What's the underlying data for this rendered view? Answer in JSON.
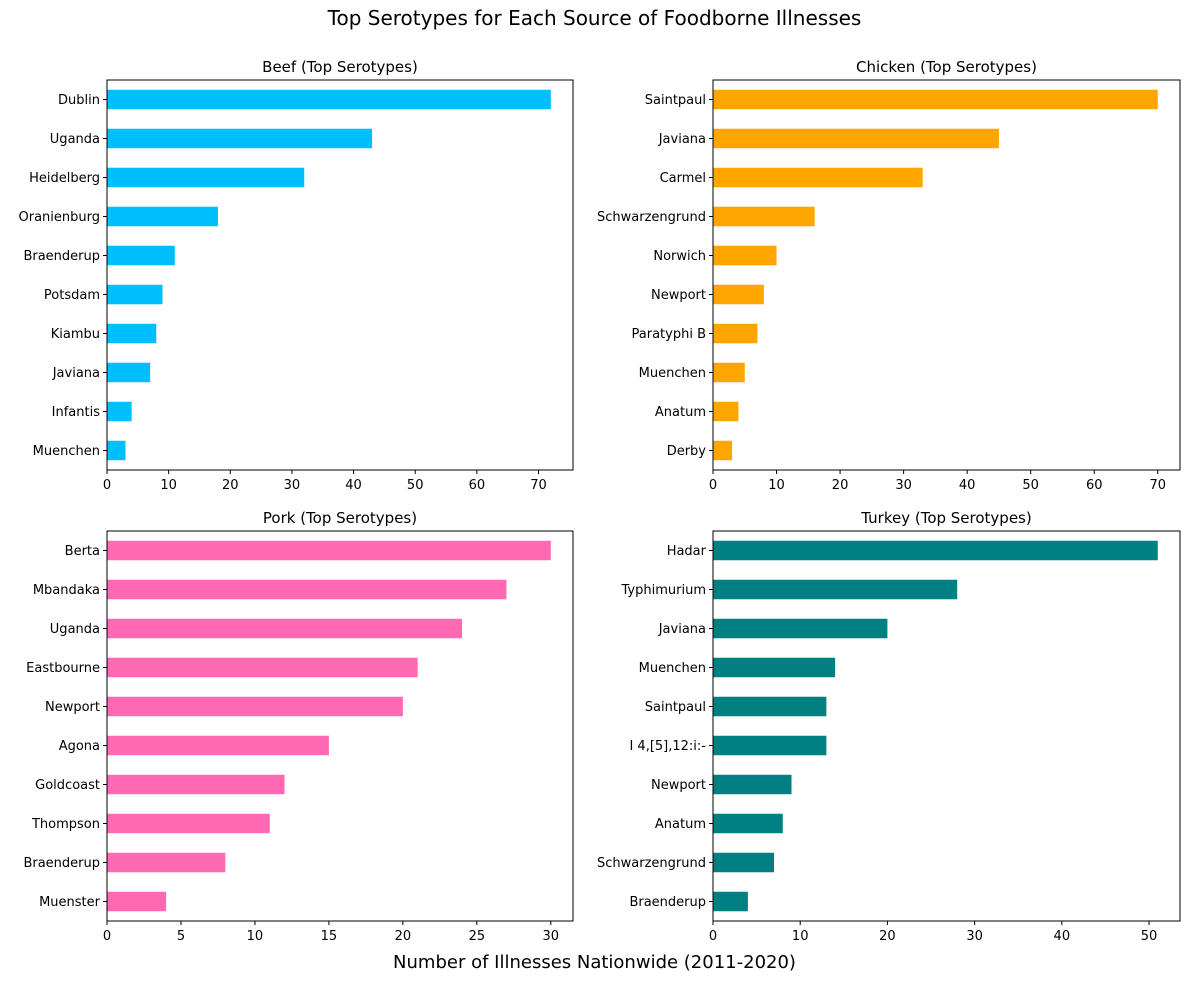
{
  "figure": {
    "title": "Top Serotypes for Each Source of Foodborne Illnesses",
    "xlabel": "Number of Illnesses Nationwide (2011-2020)"
  },
  "chart_data": [
    {
      "type": "bar",
      "orientation": "horizontal",
      "title": "Beef (Top Serotypes)",
      "color": "#00BFFF",
      "categories": [
        "Dublin",
        "Uganda",
        "Heidelberg",
        "Oranienburg",
        "Braenderup",
        "Potsdam",
        "Kiambu",
        "Javiana",
        "Infantis",
        "Muenchen"
      ],
      "values": [
        72,
        43,
        32,
        18,
        11,
        9,
        8,
        7,
        4,
        3
      ],
      "xlim": [
        0,
        75.6
      ],
      "xticks": [
        0,
        10,
        20,
        30,
        40,
        50,
        60,
        70
      ],
      "grid": false
    },
    {
      "type": "bar",
      "orientation": "horizontal",
      "title": "Chicken (Top Serotypes)",
      "color": "#FFA500",
      "categories": [
        "Saintpaul",
        "Javiana",
        "Carmel",
        "Schwarzengrund",
        "Norwich",
        "Newport",
        "Paratyphi B",
        "Muenchen",
        "Anatum",
        "Derby"
      ],
      "values": [
        70,
        45,
        33,
        16,
        10,
        8,
        7,
        5,
        4,
        3
      ],
      "xlim": [
        0,
        73.5
      ],
      "xticks": [
        0,
        10,
        20,
        30,
        40,
        50,
        60,
        70
      ],
      "grid": false
    },
    {
      "type": "bar",
      "orientation": "horizontal",
      "title": "Pork (Top Serotypes)",
      "color": "#FF69B4",
      "categories": [
        "Berta",
        "Mbandaka",
        "Uganda",
        "Eastbourne",
        "Newport",
        "Agona",
        "Goldcoast",
        "Thompson",
        "Braenderup",
        "Muenster"
      ],
      "values": [
        30,
        27,
        24,
        21,
        20,
        15,
        12,
        11,
        8,
        4
      ],
      "xlim": [
        0,
        31.5
      ],
      "xticks": [
        0,
        5,
        10,
        15,
        20,
        25,
        30
      ],
      "grid": false
    },
    {
      "type": "bar",
      "orientation": "horizontal",
      "title": "Turkey (Top Serotypes)",
      "color": "#008080",
      "categories": [
        "Hadar",
        "Typhimurium",
        "Javiana",
        "Muenchen",
        "Saintpaul",
        "I 4,[5],12:i:-",
        "Newport",
        "Anatum",
        "Schwarzengrund",
        "Braenderup"
      ],
      "values": [
        51,
        28,
        20,
        14,
        13,
        13,
        9,
        8,
        7,
        4
      ],
      "xlim": [
        0,
        53.55
      ],
      "xticks": [
        0,
        10,
        20,
        30,
        40,
        50
      ],
      "grid": false
    }
  ]
}
